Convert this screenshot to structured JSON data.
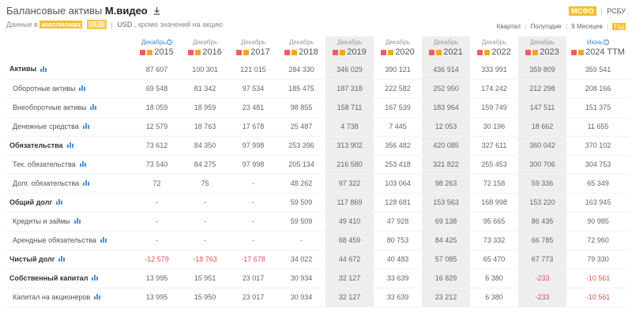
{
  "header": {
    "title_prefix": "Балансовые активы",
    "title_company": "М.видео",
    "sub_prefix": "Данные в",
    "units": "миллионах",
    "currency_active": "RUB",
    "currency_other": "USD",
    "sub_suffix": ", кроме значений на акцию",
    "standard_active": "МСФО",
    "standard_other": "РСБУ",
    "period_quarter": "Квартал",
    "period_half": "Полугодие",
    "period_9m": "9 Месяцев",
    "period_year": "Год"
  },
  "columns": [
    {
      "month": "Декабрь",
      "year": "2015",
      "info": true
    },
    {
      "month": "Декабрь",
      "year": "2016"
    },
    {
      "month": "Декабрь",
      "year": "2017"
    },
    {
      "month": "Декабрь",
      "year": "2018"
    },
    {
      "month": "Декабрь",
      "year": "2019"
    },
    {
      "month": "Декабрь",
      "year": "2020"
    },
    {
      "month": "Декабрь",
      "year": "2021"
    },
    {
      "month": "Декабрь",
      "year": "2022"
    },
    {
      "month": "Декабрь",
      "year": "2023"
    },
    {
      "month": "Июнь",
      "year": "2024 TTM",
      "info": true
    }
  ],
  "rows": [
    {
      "label": "Активы",
      "bold": true,
      "values": [
        "87 607",
        "100 301",
        "121 015",
        "284 330",
        "346 029",
        "390 121",
        "436 914",
        "333 991",
        "359 809",
        "359 541"
      ]
    },
    {
      "label": "Оборотные активы",
      "bold": false,
      "values": [
        "69 548",
        "81 342",
        "97 534",
        "185 475",
        "187 318",
        "222 582",
        "252 950",
        "174 242",
        "212 298",
        "208 166"
      ]
    },
    {
      "label": "Внеоборотные активы",
      "bold": false,
      "values": [
        "18 059",
        "18 959",
        "23 481",
        "98 855",
        "158 711",
        "167 539",
        "183 964",
        "159 749",
        "147 511",
        "151 375"
      ]
    },
    {
      "label": "Денежные средства",
      "bold": false,
      "values": [
        "12 579",
        "18 763",
        "17 678",
        "25 487",
        "4 738",
        "7 445",
        "12 053",
        "30 196",
        "18 662",
        "11 655"
      ]
    },
    {
      "label": "Обязательства",
      "bold": true,
      "values": [
        "73 612",
        "84 350",
        "97 998",
        "253 396",
        "313 902",
        "356 482",
        "420 085",
        "327 611",
        "360 042",
        "370 102"
      ]
    },
    {
      "label": "Тек. обязательства",
      "bold": false,
      "values": [
        "73 540",
        "84 275",
        "97 998",
        "205 134",
        "216 580",
        "253 418",
        "321 822",
        "255 453",
        "300 706",
        "304 753"
      ]
    },
    {
      "label": "Долг. обязательства",
      "bold": false,
      "values": [
        "72",
        "75",
        "-",
        "48 262",
        "97 322",
        "103 064",
        "98 263",
        "72 158",
        "59 336",
        "65 349"
      ]
    },
    {
      "label": "Общий долг",
      "bold": true,
      "values": [
        "-",
        "-",
        "-",
        "59 509",
        "117 869",
        "128 681",
        "153 563",
        "168 998",
        "153 220",
        "163 945"
      ]
    },
    {
      "label": "Кредиты и займы",
      "bold": false,
      "values": [
        "-",
        "-",
        "-",
        "59 509",
        "49 410",
        "47 928",
        "69 138",
        "95 665",
        "86 435",
        "90 985"
      ]
    },
    {
      "label": "Арендные обязательства",
      "bold": false,
      "values": [
        "-",
        "-",
        "-",
        "-",
        "68 459",
        "80 753",
        "84 425",
        "73 332",
        "66 785",
        "72 960"
      ]
    },
    {
      "label": "Чистый долг",
      "bold": true,
      "values": [
        "-12 579",
        "-18 763",
        "-17 678",
        "34 022",
        "44 672",
        "40 483",
        "57 085",
        "65 470",
        "67 773",
        "79 330"
      ]
    },
    {
      "label": "Собственный капитал",
      "bold": true,
      "values": [
        "13 995",
        "15 951",
        "23 017",
        "30 934",
        "32 127",
        "33 639",
        "16 829",
        "6 380",
        "-233",
        "-10 561"
      ]
    },
    {
      "label": "Капитал на акционеров",
      "bold": false,
      "values": [
        "13 995",
        "15 950",
        "23 017",
        "30 934",
        "32 127",
        "33 639",
        "23 212",
        "6 380",
        "-233",
        "-10 561"
      ]
    }
  ],
  "colors": {
    "accent": "#f5bf2a",
    "negative": "#e0505a",
    "link": "#3b8cd6",
    "icon_blue": "#4a90d9"
  },
  "icons": {
    "download": "download-icon",
    "row_chart": "bar-chart-icon",
    "pdf": "pdf-icon",
    "report": "report-icon",
    "info": "info-icon"
  }
}
